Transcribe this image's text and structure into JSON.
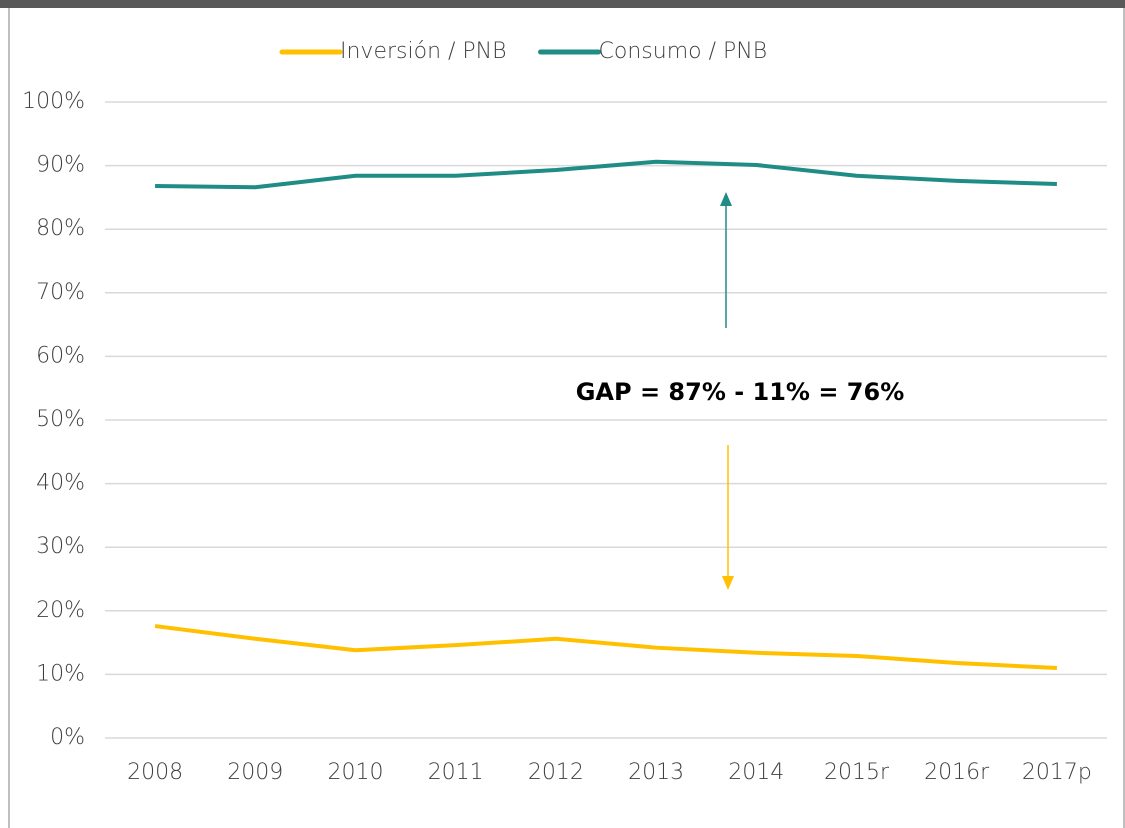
{
  "chart_data": {
    "type": "line",
    "categories": [
      "2008",
      "2009",
      "2010",
      "2011",
      "2012",
      "2013",
      "2014",
      "2015r",
      "2016r",
      "2017p"
    ],
    "series": [
      {
        "name": "Inversión / PNB",
        "color": "#FFC000",
        "values": [
          17.6,
          15.6,
          13.8,
          14.6,
          15.6,
          14.2,
          13.4,
          12.9,
          11.8,
          11.0
        ]
      },
      {
        "name": "Consumo / PNB",
        "color": "#1F8C85",
        "values": [
          86.8,
          86.6,
          88.4,
          88.4,
          89.3,
          90.6,
          90.1,
          88.4,
          87.6,
          87.1
        ]
      }
    ],
    "ylim": [
      0,
      100
    ],
    "yticks": [
      {
        "value": 0,
        "label": "0%"
      },
      {
        "value": 10,
        "label": "10%"
      },
      {
        "value": 20,
        "label": "20%"
      },
      {
        "value": 30,
        "label": "30%"
      },
      {
        "value": 40,
        "label": "40%"
      },
      {
        "value": 50,
        "label": "50%"
      },
      {
        "value": 60,
        "label": "60%"
      },
      {
        "value": 70,
        "label": "70%"
      },
      {
        "value": 80,
        "label": "80%"
      },
      {
        "value": 90,
        "label": "90%"
      },
      {
        "value": 100,
        "label": "100%"
      }
    ],
    "grid": true,
    "legend": "top",
    "annotation": "GAP = 87% - 11% = 76%"
  }
}
